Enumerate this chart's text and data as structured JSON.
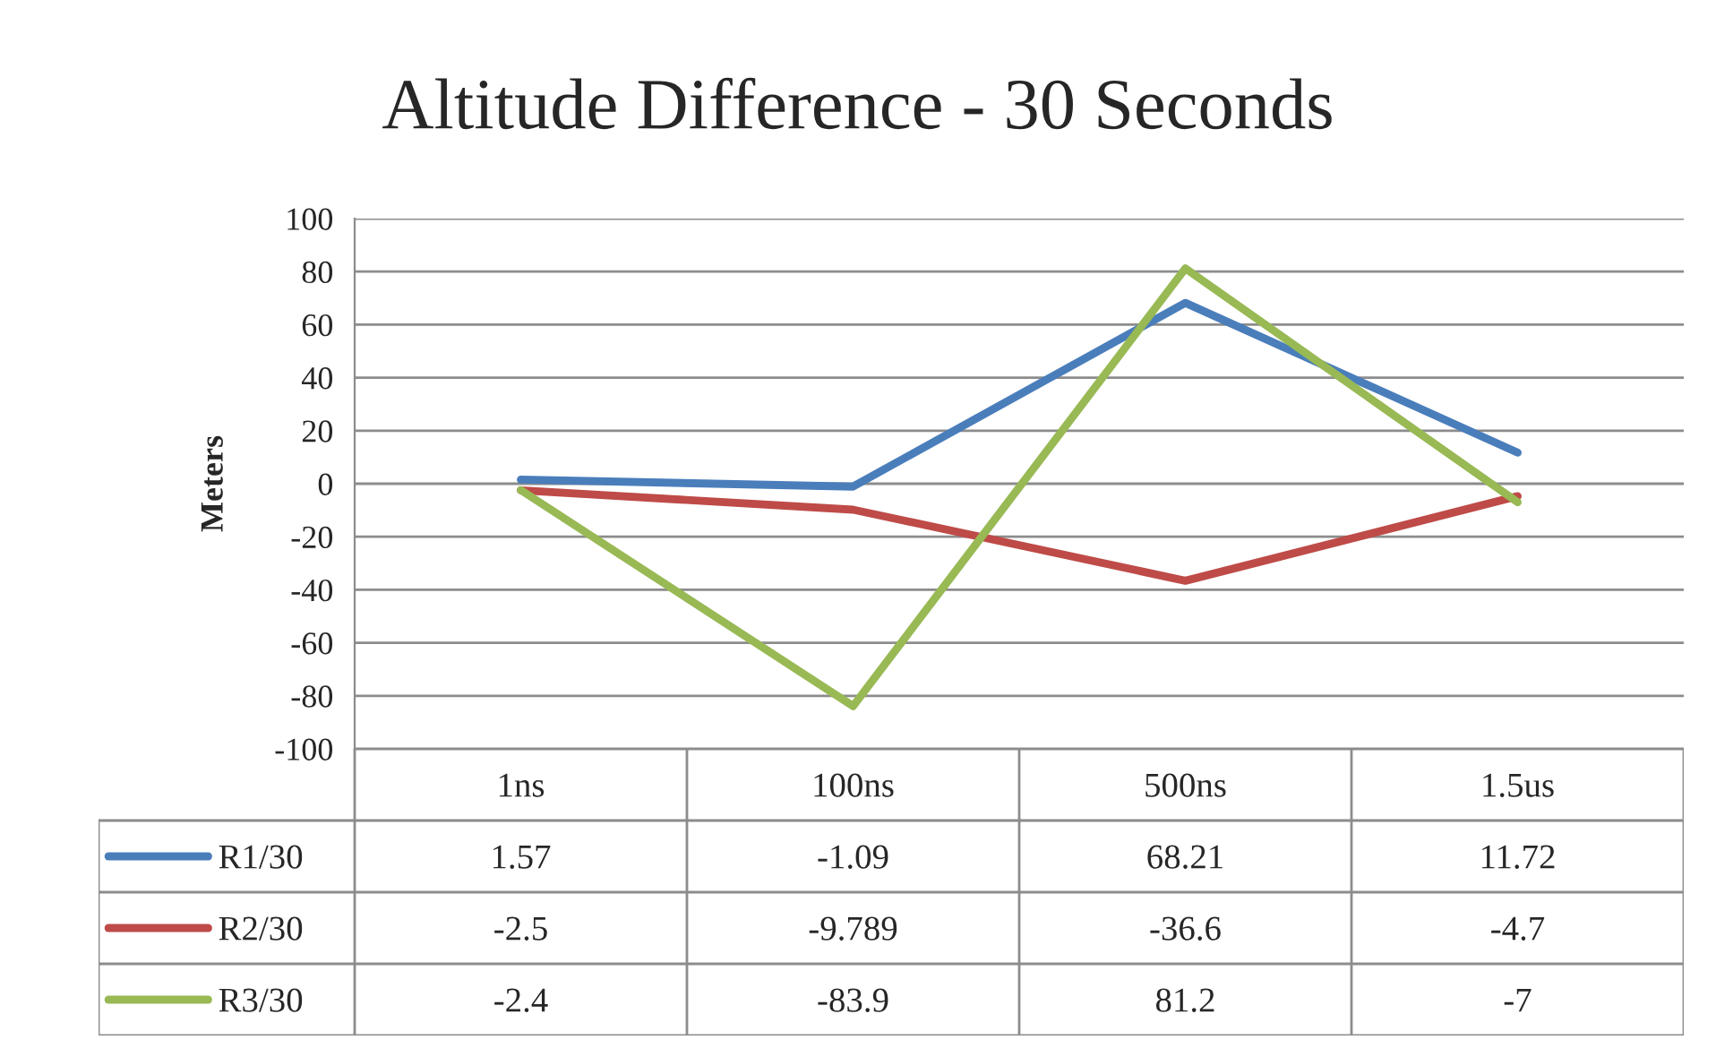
{
  "chart_data": {
    "type": "line",
    "title": "Altitude Difference - 30 Seconds",
    "ylabel": "Meters",
    "categories": [
      "1ns",
      "100ns",
      "500ns",
      "1.5us"
    ],
    "series": [
      {
        "name": "R1/30",
        "color": "#4a7ebb",
        "values": [
          1.57,
          -1.09,
          68.21,
          11.72
        ]
      },
      {
        "name": "R2/30",
        "color": "#be4b48",
        "values": [
          -2.5,
          -9.789,
          -36.6,
          -4.7
        ]
      },
      {
        "name": "R3/30",
        "color": "#98b954",
        "values": [
          -2.4,
          -83.9,
          81.2,
          -7
        ]
      }
    ],
    "ylim": [
      -100,
      100
    ],
    "yticks": [
      -100,
      -80,
      -60,
      -40,
      -20,
      0,
      20,
      40,
      60,
      80,
      100
    ],
    "grid": "y",
    "legend": "bottom",
    "data_labels": true,
    "marker": "none",
    "line_style": "solid"
  }
}
